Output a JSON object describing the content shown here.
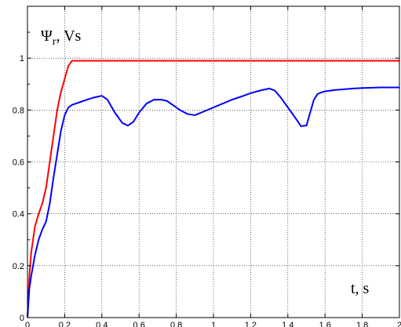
{
  "chart_data": {
    "type": "line",
    "title": "",
    "ylabel": "Ψ",
    "ylabel_subscript": "r",
    "ylabel_unit": ", Vs",
    "xlabel": "t, s",
    "xlim": [
      0,
      2
    ],
    "ylim": [
      0,
      1.2
    ],
    "grid": true,
    "xticks": [
      0,
      0.2,
      0.4,
      0.6,
      0.8,
      1,
      1.2,
      1.4,
      1.6,
      1.8,
      2
    ],
    "xtick_labels": [
      "0",
      "0.2",
      "0.4",
      "0.6",
      "0.8",
      "1",
      "1.2",
      "1.4",
      "1.6",
      "1.8",
      "2"
    ],
    "yticks": [
      0,
      0.2,
      0.4,
      0.6,
      0.8,
      1
    ],
    "ytick_labels": [
      "0",
      "0.2",
      "0.4",
      "0.6",
      "0.8",
      "1"
    ],
    "series": [
      {
        "color": "#ff0000",
        "x": [
          0,
          0.01,
          0.02,
          0.04,
          0.06,
          0.08,
          0.1,
          0.12,
          0.14,
          0.16,
          0.18,
          0.2,
          0.22,
          0.24,
          0.26,
          0.3,
          0.4,
          0.6,
          0.8,
          1.0,
          1.2,
          1.4,
          1.6,
          1.8,
          2.0
        ],
        "y": [
          0,
          0.16,
          0.25,
          0.35,
          0.4,
          0.44,
          0.5,
          0.6,
          0.7,
          0.8,
          0.87,
          0.92,
          0.97,
          0.99,
          0.99,
          0.99,
          0.99,
          0.99,
          0.99,
          0.99,
          0.99,
          0.99,
          0.99,
          0.99,
          0.99
        ]
      },
      {
        "color": "#0000ff",
        "x": [
          0,
          0.01,
          0.02,
          0.04,
          0.06,
          0.08,
          0.1,
          0.12,
          0.14,
          0.16,
          0.18,
          0.2,
          0.22,
          0.24,
          0.26,
          0.3,
          0.35,
          0.4,
          0.43,
          0.47,
          0.51,
          0.54,
          0.57,
          0.6,
          0.64,
          0.68,
          0.72,
          0.75,
          0.78,
          0.82,
          0.86,
          0.9,
          0.95,
          1.0,
          1.05,
          1.1,
          1.15,
          1.2,
          1.25,
          1.3,
          1.33,
          1.36,
          1.39,
          1.42,
          1.45,
          1.47,
          1.5,
          1.52,
          1.54,
          1.56,
          1.58,
          1.6,
          1.65,
          1.7,
          1.75,
          1.8,
          1.85,
          1.9,
          2.0
        ],
        "y": [
          0,
          0.11,
          0.16,
          0.24,
          0.3,
          0.34,
          0.37,
          0.44,
          0.54,
          0.63,
          0.72,
          0.78,
          0.81,
          0.82,
          0.825,
          0.835,
          0.847,
          0.855,
          0.84,
          0.79,
          0.75,
          0.74,
          0.755,
          0.79,
          0.825,
          0.84,
          0.84,
          0.835,
          0.82,
          0.8,
          0.785,
          0.78,
          0.795,
          0.81,
          0.825,
          0.84,
          0.852,
          0.865,
          0.875,
          0.883,
          0.875,
          0.85,
          0.82,
          0.79,
          0.76,
          0.738,
          0.74,
          0.79,
          0.84,
          0.862,
          0.868,
          0.872,
          0.877,
          0.88,
          0.883,
          0.885,
          0.886,
          0.887,
          0.887
        ]
      }
    ]
  }
}
